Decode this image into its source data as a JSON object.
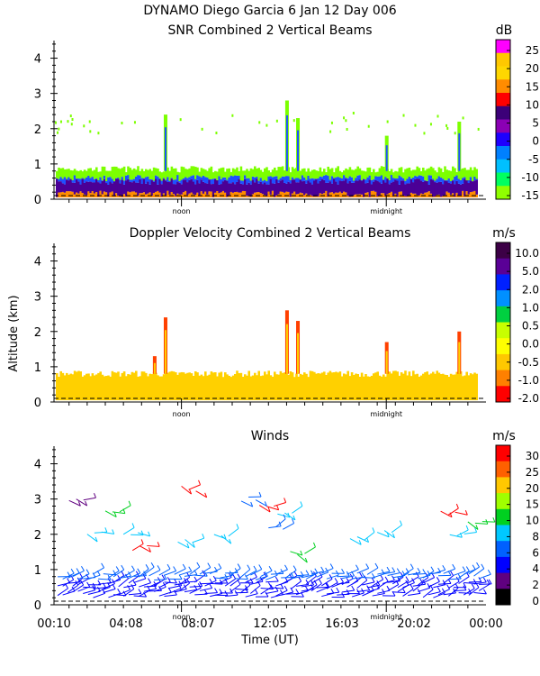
{
  "header": {
    "title_line1": "DYNAMO Diego Garcia   6 Jan 12 Day 006"
  },
  "common": {
    "ylabel": "Altitude (km)",
    "xlabel": "Time (UT)",
    "noon_label": "noon",
    "midnight_label": "midnight",
    "ylim": [
      0,
      4.5
    ],
    "yticks": [
      "0",
      "1",
      "2",
      "3",
      "4"
    ],
    "time_ticks": [
      "00:10",
      "04:08",
      "08:07",
      "12:05",
      "16:03",
      "20:02",
      "00:00"
    ]
  },
  "chart_data": [
    {
      "type": "heatmap",
      "title": "SNR Combined 2 Vertical Beams",
      "colorbar_unit": "dB",
      "colorbar_labels": [
        "25",
        "20",
        "15",
        "10",
        "5",
        "0",
        "-5",
        "-10",
        "-15"
      ],
      "colorbar_colors": [
        "#ff00ff",
        "#ffc800",
        "#ffd700",
        "#ff8c00",
        "#ff0000",
        "#3c0078",
        "#8b00b4",
        "#1e00ff",
        "#0080ff",
        "#00c0ff",
        "#00ff60",
        "#90ff00"
      ],
      "ylim": [
        0,
        4.5
      ],
      "xlim_hours": [
        0.17,
        24.0
      ],
      "layers": [
        {
          "name": "lower-orange",
          "color": "#ff8c00",
          "top_km": 0.15
        },
        {
          "name": "lower-purple",
          "color": "#4b0096",
          "top_km": 0.5
        },
        {
          "name": "mid-blue",
          "color": "#1e50ff",
          "top_km": 0.6
        },
        {
          "name": "upper-green",
          "color": "#7cff00",
          "top_km": 0.85
        }
      ],
      "plumes": [
        {
          "hour": 6.3,
          "top_km": 2.4
        },
        {
          "hour": 13.0,
          "top_km": 2.8
        },
        {
          "hour": 13.6,
          "top_km": 2.3
        },
        {
          "hour": 18.5,
          "top_km": 1.8
        },
        {
          "hour": 22.5,
          "top_km": 2.2
        }
      ]
    },
    {
      "type": "heatmap",
      "title": "Doppler Velocity Combined 2 Vertical Beams",
      "colorbar_unit": "m/s",
      "colorbar_labels": [
        "10.0",
        "5.0",
        "2.0",
        "1.0",
        "0.5",
        "0.0",
        "-0.5",
        "-1.0",
        "-2.0"
      ],
      "colorbar_colors": [
        "#3c0046",
        "#5a0096",
        "#0020ff",
        "#0090ff",
        "#00d040",
        "#c8ff00",
        "#ffff00",
        "#ffc800",
        "#ff8000",
        "#ff0000"
      ],
      "ylim": [
        0,
        4.5
      ],
      "xlim_hours": [
        0.17,
        24.0
      ],
      "layers": [
        {
          "name": "yellow-orange",
          "color": "#ffd000",
          "top_km": 0.8
        }
      ],
      "plumes": [
        {
          "hour": 5.7,
          "top_km": 1.3
        },
        {
          "hour": 6.3,
          "top_km": 2.4
        },
        {
          "hour": 13.0,
          "top_km": 2.6
        },
        {
          "hour": 13.6,
          "top_km": 2.3
        },
        {
          "hour": 18.5,
          "top_km": 1.7
        },
        {
          "hour": 22.5,
          "top_km": 2.0
        }
      ]
    },
    {
      "type": "scatter",
      "title": "Winds",
      "colorbar_unit": "m/s",
      "colorbar_labels": [
        "30",
        "25",
        "20",
        "15",
        "10",
        "8",
        "6",
        "4",
        "2",
        "0"
      ],
      "colorbar_colors": [
        "#ff0000",
        "#ff6000",
        "#ffc800",
        "#a0ff00",
        "#00d020",
        "#00c8ff",
        "#0060ff",
        "#0000ff",
        "#600080",
        "#000000"
      ],
      "ylim": [
        0,
        4.5
      ],
      "xlim_hours": [
        0.17,
        24.0
      ],
      "barb_layers": [
        {
          "altitude_km": 0.3,
          "color": "#0000ff"
        },
        {
          "altitude_km": 0.55,
          "color": "#0000ff"
        },
        {
          "altitude_km": 0.8,
          "color": "#0060ff"
        }
      ],
      "scattered_barbs": [
        {
          "hour": 1.0,
          "alt_km": 3.0,
          "color": "#600080"
        },
        {
          "hour": 3.0,
          "alt_km": 2.7,
          "color": "#00d020"
        },
        {
          "hour": 7.2,
          "alt_km": 3.3,
          "color": "#ff0000"
        },
        {
          "hour": 10.5,
          "alt_km": 3.0,
          "color": "#0060ff"
        },
        {
          "hour": 11.5,
          "alt_km": 2.8,
          "color": "#ff0000"
        },
        {
          "hour": 12.5,
          "alt_km": 2.6,
          "color": "#00c8ff"
        },
        {
          "hour": 2.0,
          "alt_km": 2.0,
          "color": "#00c8ff"
        },
        {
          "hour": 4.5,
          "alt_km": 1.6,
          "color": "#ff0000"
        },
        {
          "hour": 4.0,
          "alt_km": 2.0,
          "color": "#00c8ff"
        },
        {
          "hour": 7.0,
          "alt_km": 1.8,
          "color": "#00c8ff"
        },
        {
          "hour": 9.0,
          "alt_km": 2.0,
          "color": "#00c8ff"
        },
        {
          "hour": 12.0,
          "alt_km": 2.2,
          "color": "#0060ff"
        },
        {
          "hour": 13.2,
          "alt_km": 1.5,
          "color": "#00d020"
        },
        {
          "hour": 16.5,
          "alt_km": 1.9,
          "color": "#00c8ff"
        },
        {
          "hour": 18.0,
          "alt_km": 2.1,
          "color": "#00c8ff"
        },
        {
          "hour": 21.5,
          "alt_km": 2.6,
          "color": "#ff0000"
        },
        {
          "hour": 22.0,
          "alt_km": 2.0,
          "color": "#00c8ff"
        },
        {
          "hour": 23.0,
          "alt_km": 2.3,
          "color": "#00d020"
        }
      ]
    }
  ]
}
